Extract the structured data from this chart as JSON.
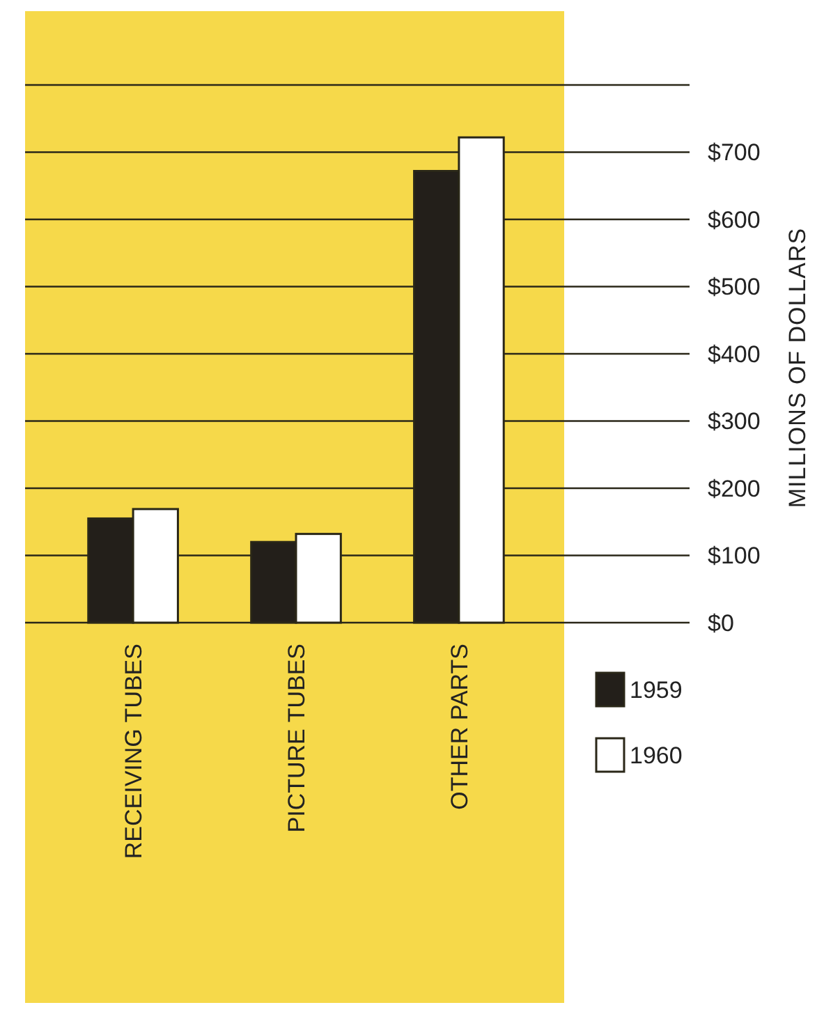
{
  "chart_data": {
    "type": "bar",
    "ylabel": "MILLIONS OF DOLLARS",
    "categories": [
      "RECEIVING TUBES",
      "PICTURE TUBES",
      "OTHER PARTS"
    ],
    "series": [
      {
        "name": "1959",
        "color": "#231f1a",
        "values": [
          155,
          120,
          672
        ]
      },
      {
        "name": "1960",
        "color": "#ffffff",
        "values": [
          169,
          132,
          722
        ]
      }
    ],
    "ylim": [
      0,
      800
    ],
    "yticks": [
      {
        "value": 0,
        "label": "$0"
      },
      {
        "value": 100,
        "label": "$100"
      },
      {
        "value": 200,
        "label": "$200"
      },
      {
        "value": 300,
        "label": "$300"
      },
      {
        "value": 400,
        "label": "$400"
      },
      {
        "value": 500,
        "label": "$500"
      },
      {
        "value": 600,
        "label": "$600"
      },
      {
        "value": 700,
        "label": "$700"
      },
      {
        "value": 800,
        "label": null
      }
    ],
    "grid": "y",
    "legend": "bottom right"
  }
}
